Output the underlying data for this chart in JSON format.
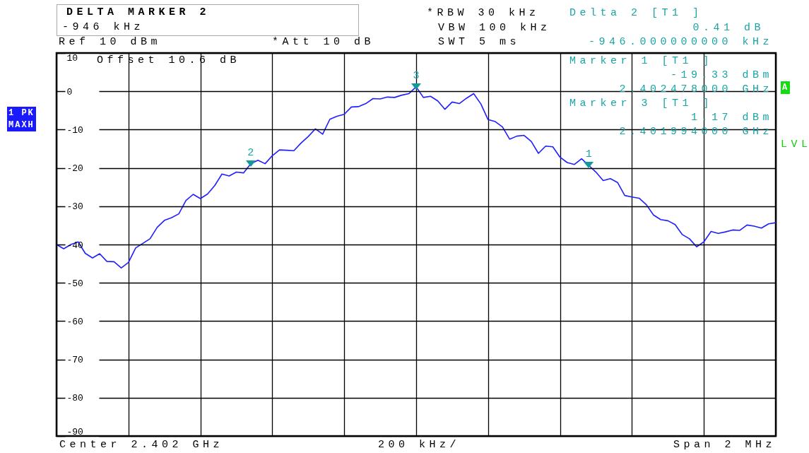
{
  "chart_data": {
    "type": "line",
    "title": "DELTA MARKER 2",
    "subtitle": "-946 kHz",
    "ylim": [
      -90,
      10
    ],
    "yticks": [
      10,
      0,
      -10,
      -20,
      -30,
      -40,
      -50,
      -60,
      -70,
      -80,
      -90
    ],
    "tick_labels": "y",
    "grid": true,
    "line_style": "solid",
    "categories": [
      null,
      null,
      null,
      null,
      null,
      null,
      null,
      null,
      null,
      null,
      null,
      null,
      null,
      null,
      null,
      null,
      null,
      null,
      null,
      null,
      null,
      null,
      null,
      null,
      null,
      null,
      null,
      null,
      null,
      null,
      null,
      null,
      null,
      null,
      null,
      null,
      null,
      null,
      null,
      null,
      null,
      null,
      null,
      null,
      null,
      null,
      null,
      null,
      null,
      null,
      null,
      null,
      null,
      null,
      null,
      null,
      null,
      null,
      null,
      null,
      null,
      null,
      null,
      null,
      null,
      null,
      null,
      null,
      null,
      null,
      null,
      null,
      null,
      null,
      null,
      null,
      null,
      null,
      null,
      null,
      null,
      null,
      null,
      null,
      null,
      null,
      null,
      null,
      null,
      null,
      null,
      null,
      null,
      null,
      null,
      null,
      null,
      null,
      null,
      null,
      null
    ],
    "series": [
      {
        "color": "#1f1fff",
        "values": [
          -40.0,
          -41.1,
          -40.0,
          -39.3,
          -42.3,
          -43.5,
          -42.4,
          -44.4,
          -44.5,
          -46.1,
          -44.7,
          -40.9,
          -39.7,
          -38.5,
          -35.5,
          -33.7,
          -33.0,
          -32.0,
          -28.5,
          -26.9,
          -28.0,
          -26.8,
          -24.6,
          -21.6,
          -22.1,
          -21.1,
          -21.3,
          -18.92,
          -18.0,
          -18.9,
          -16.8,
          -15.3,
          -15.4,
          -15.5,
          -13.5,
          -11.8,
          -9.8,
          -11.2,
          -7.3,
          -6.5,
          -6.0,
          -4.1,
          -4.0,
          -3.2,
          -1.9,
          -2.0,
          -1.5,
          -1.6,
          -1.0,
          -0.6,
          1.17,
          -1.6,
          -1.3,
          -2.5,
          -4.7,
          -2.8,
          -3.2,
          -1.8,
          -0.6,
          -3.3,
          -7.4,
          -7.9,
          -9.3,
          -12.5,
          -11.7,
          -11.5,
          -13.1,
          -16.2,
          -14.3,
          -14.5,
          -17.2,
          -18.6,
          -19.1,
          -17.6,
          -19.33,
          -21.1,
          -23.3,
          -22.8,
          -23.8,
          -27.2,
          -27.6,
          -27.9,
          -29.6,
          -32.3,
          -33.5,
          -33.8,
          -34.8,
          -37.4,
          -38.5,
          -40.6,
          -39.3,
          -36.6,
          -37.1,
          -36.7,
          -36.2,
          -36.3,
          -34.9,
          -35.2,
          -35.7,
          -34.6,
          -34.3
        ]
      }
    ],
    "annotations": [
      "Ref 10 dBm",
      "*Att 10 dB",
      "*RBW 30 kHz",
      "VBW 100 kHz",
      "SWT 5 ms",
      "Delta 2 [T1 ]",
      "0.41 dB",
      "-946.000000000 kHz",
      "Offset 10.6 dB",
      "Marker 1 [T1 ]",
      "-19.33 dBm",
      "2.402478000 GHz",
      "Marker 3 [T1 ]",
      "1.17 dBm",
      "2.401994000 GHz",
      "1 PK",
      "MAXH",
      "A",
      "LVL",
      "Center 2.402 GHz",
      "200 kHz/",
      "Span 2 MHz",
      {
        "text": "1",
        "y": -19.33
      },
      {
        "text": "2",
        "y": -18.92
      },
      {
        "text": "3",
        "y": 1.17
      }
    ]
  }
}
